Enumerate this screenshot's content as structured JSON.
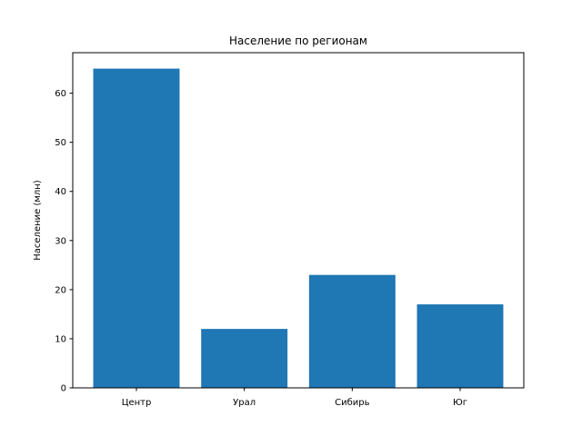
{
  "chart_data": {
    "type": "bar",
    "title": "Население по регионам",
    "xlabel": "",
    "ylabel": "Население (млн)",
    "categories": [
      "Центр",
      "Урал",
      "Сибирь",
      "Юг"
    ],
    "values": [
      65,
      12,
      23,
      17
    ],
    "ylim": [
      0,
      68.25
    ],
    "yticks": [
      0,
      10,
      20,
      30,
      40,
      50,
      60
    ],
    "grid": false,
    "bar_color": "#1f77b4"
  }
}
